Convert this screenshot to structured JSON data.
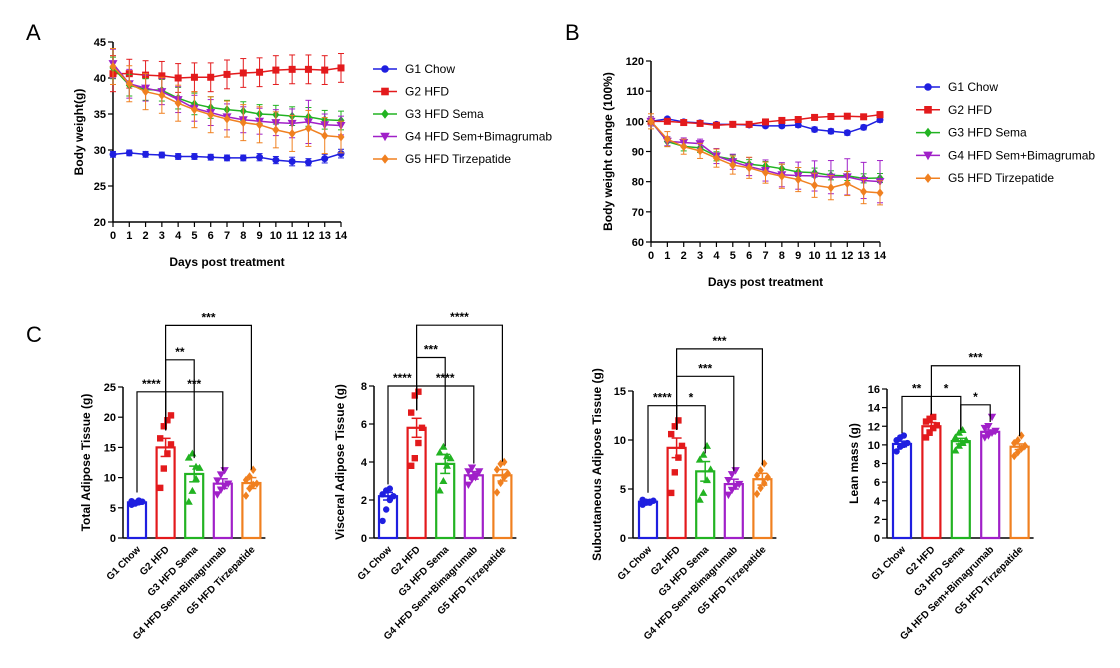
{
  "panels": {
    "A": "A",
    "B": "B",
    "C": "C"
  },
  "colors": {
    "G1": "#1f1fe0",
    "G2": "#e31a1c",
    "G3": "#22b322",
    "G4": "#a020c8",
    "G5": "#f08020"
  },
  "chart_data": [
    {
      "id": "A",
      "type": "line",
      "title": "",
      "xlabel": "Days post treatment",
      "ylabel": "Body weight(g)",
      "xlim": [
        0,
        14
      ],
      "ylim": [
        20,
        45
      ],
      "xticks": [
        0,
        1,
        2,
        3,
        4,
        5,
        6,
        7,
        8,
        9,
        10,
        11,
        12,
        13,
        14
      ],
      "yticks": [
        20,
        25,
        30,
        35,
        40,
        45
      ],
      "legend": "right",
      "x": [
        0,
        1,
        2,
        3,
        4,
        5,
        6,
        7,
        8,
        9,
        10,
        11,
        12,
        13,
        14
      ],
      "series": [
        {
          "name": "G1 Chow",
          "color": "#1f1fe0",
          "marker": "circle",
          "values": [
            29.4,
            29.6,
            29.4,
            29.3,
            29.1,
            29.1,
            29.0,
            28.9,
            28.9,
            29.0,
            28.6,
            28.4,
            28.3,
            28.8,
            29.5
          ],
          "err": [
            0.4,
            0.4,
            0.4,
            0.4,
            0.4,
            0.4,
            0.4,
            0.4,
            0.4,
            0.5,
            0.5,
            0.6,
            0.5,
            0.6,
            0.6
          ]
        },
        {
          "name": "G2 HFD",
          "color": "#e31a1c",
          "marker": "square",
          "values": [
            40.6,
            40.6,
            40.4,
            40.3,
            40.0,
            40.1,
            40.1,
            40.5,
            40.7,
            40.8,
            41.1,
            41.2,
            41.2,
            41.1,
            41.4
          ],
          "err": [
            2.5,
            2.0,
            2.0,
            2.0,
            2.0,
            2.0,
            2.0,
            2.0,
            2.0,
            2.0,
            2.0,
            2.0,
            2.0,
            2.0,
            2.0
          ]
        },
        {
          "name": "G3 HFD Sema",
          "color": "#22b322",
          "marker": "diamond",
          "values": [
            41.4,
            39.0,
            38.4,
            38.3,
            37.2,
            36.4,
            35.9,
            35.6,
            35.4,
            35.0,
            34.9,
            34.7,
            34.6,
            34.2,
            34.1
          ],
          "err": [
            1.5,
            1.5,
            1.5,
            1.5,
            1.5,
            1.5,
            1.5,
            1.3,
            1.3,
            1.3,
            1.3,
            1.3,
            1.3,
            1.3,
            1.3
          ]
        },
        {
          "name": "G4 HFD Sem+Bimagrumab",
          "color": "#a020c8",
          "marker": "triangle-down",
          "values": [
            42.0,
            39.2,
            38.6,
            38.1,
            37.0,
            35.8,
            35.2,
            34.6,
            34.2,
            34.0,
            33.8,
            33.7,
            33.9,
            33.5,
            33.4
          ],
          "err": [
            2.0,
            2.0,
            1.8,
            1.8,
            1.8,
            1.8,
            1.8,
            1.8,
            1.8,
            1.8,
            1.8,
            2.0,
            3.0,
            1.5,
            1.3
          ]
        },
        {
          "name": "G5 HFD Tirzepatide",
          "color": "#f08020",
          "marker": "diamond",
          "values": [
            41.6,
            39.2,
            38.1,
            37.6,
            36.5,
            35.6,
            34.9,
            34.3,
            33.8,
            33.5,
            32.8,
            32.3,
            33.0,
            32.0,
            31.8
          ],
          "err": [
            2.5,
            2.5,
            2.5,
            2.5,
            2.5,
            2.5,
            2.5,
            2.5,
            2.5,
            2.5,
            2.5,
            2.5,
            2.5,
            2.5,
            2.2
          ]
        }
      ]
    },
    {
      "id": "B",
      "type": "line",
      "title": "",
      "xlabel": "Days post treatment",
      "ylabel": "Body weight change (100%)",
      "xlim": [
        0,
        14
      ],
      "ylim": [
        60,
        120
      ],
      "xticks": [
        0,
        1,
        2,
        3,
        4,
        5,
        6,
        7,
        8,
        9,
        10,
        11,
        12,
        13,
        14
      ],
      "yticks": [
        60,
        70,
        80,
        90,
        100,
        110,
        120
      ],
      "legend": "right",
      "x": [
        0,
        1,
        2,
        3,
        4,
        5,
        6,
        7,
        8,
        9,
        10,
        11,
        12,
        13,
        14
      ],
      "series": [
        {
          "name": "G1 Chow",
          "color": "#1f1fe0",
          "marker": "circle",
          "values": [
            100,
            100.8,
            99.8,
            99.5,
            99.0,
            99.0,
            98.8,
            98.5,
            98.5,
            98.8,
            97.3,
            96.7,
            96.2,
            98.0,
            100.5
          ],
          "err": [
            0.6,
            0.6,
            0.6,
            0.6,
            0.6,
            0.6,
            0.6,
            0.6,
            0.6,
            0.8,
            0.8,
            0.8,
            0.8,
            0.8,
            0.8
          ]
        },
        {
          "name": "G2 HFD",
          "color": "#e31a1c",
          "marker": "square",
          "values": [
            100,
            100.0,
            99.6,
            99.3,
            98.7,
            99.0,
            99.0,
            99.8,
            100.3,
            100.6,
            101.3,
            101.6,
            101.7,
            101.5,
            102.2
          ],
          "err": [
            0.8,
            0.8,
            0.8,
            0.8,
            0.8,
            0.8,
            0.8,
            0.8,
            0.8,
            0.8,
            0.8,
            0.8,
            0.8,
            0.8,
            1.0
          ]
        },
        {
          "name": "G3 HFD Sema",
          "color": "#22b322",
          "marker": "diamond",
          "values": [
            100,
            93.3,
            91.7,
            91.2,
            88.4,
            87.4,
            85.8,
            85.2,
            84.3,
            83.2,
            83.0,
            82.1,
            81.9,
            81.1,
            81.2
          ],
          "err": [
            1.5,
            1.5,
            1.5,
            1.5,
            1.5,
            1.5,
            1.5,
            1.5,
            1.5,
            1.5,
            1.5,
            1.5,
            1.5,
            1.5,
            1.5
          ]
        },
        {
          "name": "G4 HFD Sem+Bimagrumab",
          "color": "#a020c8",
          "marker": "triangle-down",
          "values": [
            100,
            93.4,
            93.0,
            92.6,
            88.5,
            86.6,
            85.0,
            83.7,
            82.3,
            82.0,
            81.9,
            81.5,
            81.6,
            80.4,
            80.0
          ],
          "err": [
            1.5,
            1.5,
            1.5,
            1.5,
            2.5,
            2.5,
            3.0,
            3.5,
            4.0,
            4.5,
            5.0,
            5.5,
            6.0,
            6.0,
            7.0
          ]
        },
        {
          "name": "G5 HFD Tirzepatide",
          "color": "#f08020",
          "marker": "diamond",
          "values": [
            100,
            94.1,
            91.6,
            90.2,
            87.8,
            85.5,
            84.6,
            83.0,
            81.8,
            80.7,
            78.8,
            78.0,
            79.4,
            76.7,
            76.3
          ],
          "err": [
            2.5,
            2.5,
            2.5,
            2.5,
            3.0,
            3.0,
            3.5,
            3.5,
            4.0,
            4.0,
            4.0,
            4.0,
            4.0,
            4.0,
            4.0
          ]
        }
      ]
    },
    {
      "id": "C1",
      "type": "bar",
      "title": "",
      "xlabel": "",
      "ylabel": "Total Adipose Tissue (g)",
      "ylim": [
        0,
        25
      ],
      "yticks": [
        0,
        5,
        10,
        15,
        20,
        25
      ],
      "categories": [
        "G1 Chow",
        "G2 HFD",
        "G3 HFD Sema",
        "G4 HFD Sem+Bimagrumab",
        "G5 HFD Tirzepatide"
      ],
      "values": [
        5.9,
        15.0,
        10.6,
        9.0,
        9.1
      ],
      "err": [
        0.3,
        1.5,
        1.3,
        0.8,
        0.9
      ],
      "points": [
        [
          5.5,
          5.7,
          5.9,
          6.0,
          6.1,
          5.8,
          6.2
        ],
        [
          8.3,
          11.5,
          14.0,
          15.5,
          16.5,
          18.5,
          19.5,
          20.3
        ],
        [
          6.0,
          7.8,
          9.8,
          11.6,
          13.3,
          14.0,
          11.8
        ],
        [
          7.2,
          8.0,
          8.6,
          9.0,
          9.5,
          10.5,
          11.2
        ],
        [
          7.0,
          8.2,
          8.8,
          9.0,
          9.6,
          10.2,
          11.3
        ]
      ],
      "significance": [
        {
          "from": 0,
          "to": 1,
          "label": "****",
          "y": 24.2
        },
        {
          "from": 1,
          "to": 2,
          "label": "**",
          "y": 29.5
        },
        {
          "from": 1,
          "to": 3,
          "label": "***",
          "y": 24.2
        },
        {
          "from": 1,
          "to": 4,
          "label": "***",
          "y": 35.2
        }
      ]
    },
    {
      "id": "C2",
      "type": "bar",
      "title": "",
      "xlabel": "",
      "ylabel": "Visceral Adipose Tissue (g)",
      "ylim": [
        0,
        8
      ],
      "yticks": [
        0,
        2,
        4,
        6,
        8
      ],
      "categories": [
        "G1 Chow",
        "G2 HFD",
        "G3 HFD Sema",
        "G4 HFD Sem+Bimagrumab",
        "G5 HFD Tirzepatide"
      ],
      "values": [
        2.2,
        5.8,
        3.9,
        3.3,
        3.3
      ],
      "err": [
        0.2,
        0.5,
        0.5,
        0.2,
        0.3
      ],
      "points": [
        [
          0.9,
          1.5,
          2.0,
          2.2,
          2.3,
          2.5,
          2.6
        ],
        [
          3.8,
          4.2,
          5.0,
          5.8,
          6.6,
          7.5,
          7.7
        ],
        [
          2.5,
          3.0,
          3.8,
          4.2,
          4.5,
          4.8,
          4.3
        ],
        [
          2.8,
          3.1,
          3.3,
          3.5,
          3.5,
          3.7,
          3.2
        ],
        [
          2.4,
          2.9,
          3.2,
          3.4,
          3.6,
          3.9,
          4.0
        ]
      ],
      "significance": [
        {
          "from": 0,
          "to": 1,
          "label": "****",
          "y": 8.0
        },
        {
          "from": 1,
          "to": 2,
          "label": "***",
          "y": 9.5
        },
        {
          "from": 1,
          "to": 3,
          "label": "****",
          "y": 8.0
        },
        {
          "from": 1,
          "to": 4,
          "label": "****",
          "y": 11.2
        }
      ]
    },
    {
      "id": "C3",
      "type": "bar",
      "title": "",
      "xlabel": "",
      "ylabel": "Subcutaneous Adipose Tissue (g)",
      "ylim": [
        0,
        15
      ],
      "yticks": [
        0,
        5,
        10,
        15
      ],
      "categories": [
        "G1 Chow",
        "G2 HFD",
        "G3 HFD Sema",
        "G4 HFD Sem+Bimagrumab",
        "G5 HFD Tirzepatide"
      ],
      "values": [
        3.7,
        9.2,
        6.8,
        5.5,
        6.0
      ],
      "err": [
        0.1,
        1.0,
        1.0,
        0.5,
        0.6
      ],
      "points": [
        [
          3.4,
          3.6,
          3.7,
          3.8,
          3.9,
          3.7,
          3.6
        ],
        [
          4.6,
          6.7,
          8.2,
          9.4,
          10.6,
          11.4,
          12.0
        ],
        [
          3.9,
          4.6,
          5.9,
          7.0,
          8.0,
          8.5,
          9.4
        ],
        [
          4.4,
          4.9,
          5.3,
          5.5,
          5.9,
          6.5,
          6.9
        ],
        [
          4.5,
          5.1,
          5.6,
          6.2,
          6.4,
          6.9,
          7.6
        ]
      ],
      "significance": [
        {
          "from": 0,
          "to": 1,
          "label": "****",
          "y": 13.5
        },
        {
          "from": 1,
          "to": 2,
          "label": "*",
          "y": 13.5
        },
        {
          "from": 1,
          "to": 3,
          "label": "***",
          "y": 16.5
        },
        {
          "from": 1,
          "to": 4,
          "label": "***",
          "y": 19.3
        }
      ]
    },
    {
      "id": "C4",
      "type": "bar",
      "title": "",
      "xlabel": "",
      "ylabel": "Lean mass (g)",
      "ylim": [
        0,
        16
      ],
      "yticks": [
        0,
        2,
        4,
        6,
        8,
        10,
        12,
        14,
        16
      ],
      "categories": [
        "G1 Chow",
        "G2 HFD",
        "G3 HFD Sema",
        "G4 HFD Sem+Bimagrumab",
        "G5 HFD Tirzepatide"
      ],
      "values": [
        10.1,
        12.0,
        10.4,
        11.4,
        9.8
      ],
      "err": [
        0.3,
        0.4,
        0.3,
        0.2,
        0.3
      ],
      "points": [
        [
          9.3,
          9.8,
          10.0,
          10.2,
          10.5,
          10.8,
          11.0
        ],
        [
          10.8,
          11.3,
          11.8,
          12.1,
          12.5,
          12.8,
          13.0
        ],
        [
          9.4,
          9.9,
          10.2,
          10.5,
          10.8,
          11.3,
          11.6
        ],
        [
          10.8,
          11.0,
          11.3,
          11.5,
          11.8,
          12.0,
          13.0
        ],
        [
          8.8,
          9.2,
          9.6,
          9.9,
          10.2,
          10.5,
          11.0
        ]
      ],
      "significance": [
        {
          "from": 0,
          "to": 1,
          "label": "**",
          "y": 15.2
        },
        {
          "from": 1,
          "to": 2,
          "label": "*",
          "y": 15.2
        },
        {
          "from": 2,
          "to": 3,
          "label": "*",
          "y": 14.3
        },
        {
          "from": 1,
          "to": 4,
          "label": "***",
          "y": 18.5
        }
      ]
    }
  ]
}
